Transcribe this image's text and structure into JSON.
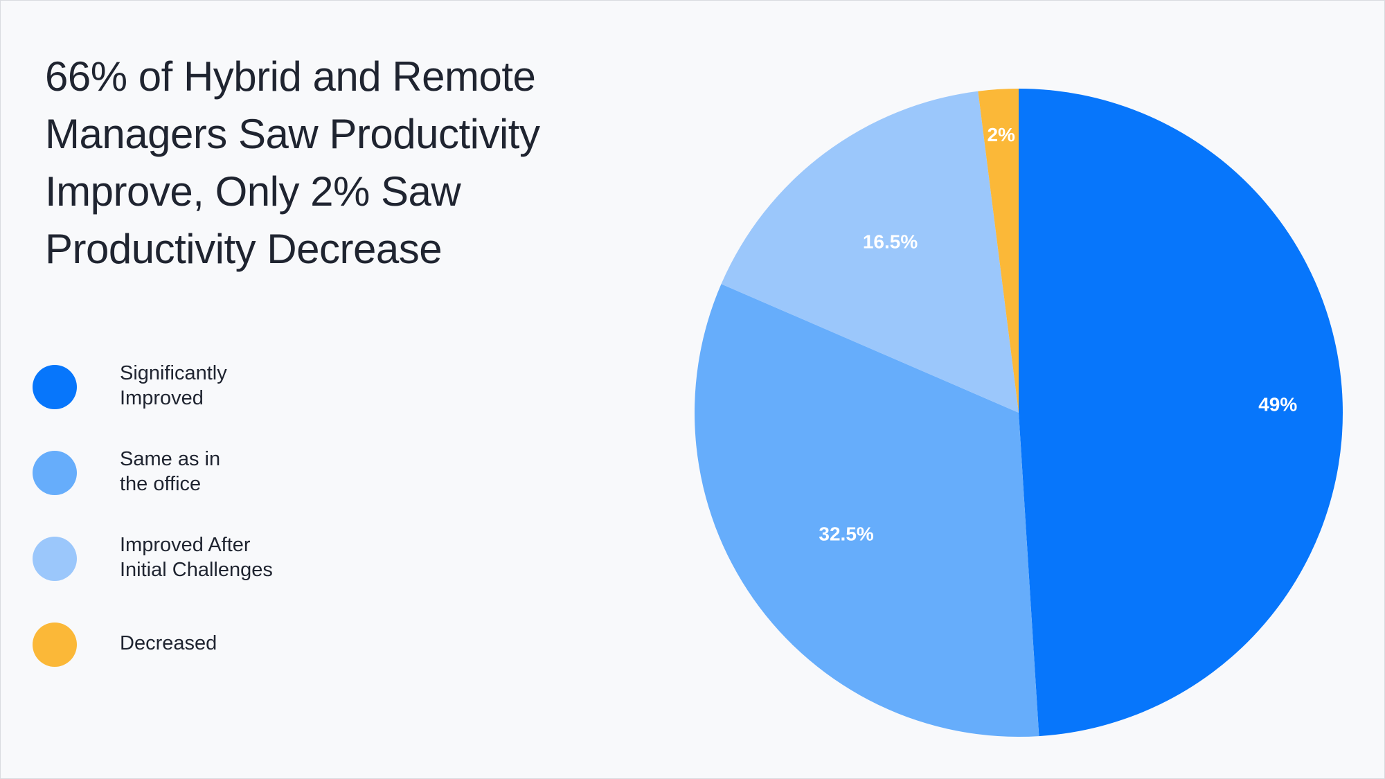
{
  "title": "66% of Hybrid and Remote Managers Saw Productivity Improve, Only 2% Saw Productivity Decrease",
  "chart_data": {
    "type": "pie",
    "title": "66% of Hybrid and Remote Managers Saw Productivity Improve, Only 2% Saw Productivity Decrease",
    "legend_position": "left",
    "start_angle": "12 o'clock",
    "direction": "clockwise",
    "slices": [
      {
        "label": "Significantly\nImproved",
        "value": 49,
        "display": "49%",
        "color": "#0776fb"
      },
      {
        "label": "Same as in\nthe office",
        "value": 32.5,
        "display": "32.5%",
        "color": "#66adfb"
      },
      {
        "label": "Improved After\nInitial Challenges",
        "value": 16.5,
        "display": "16.5%",
        "color": "#9bc7fb"
      },
      {
        "label": "Decreased",
        "value": 2,
        "display": "2%",
        "color": "#fbb838"
      }
    ]
  }
}
